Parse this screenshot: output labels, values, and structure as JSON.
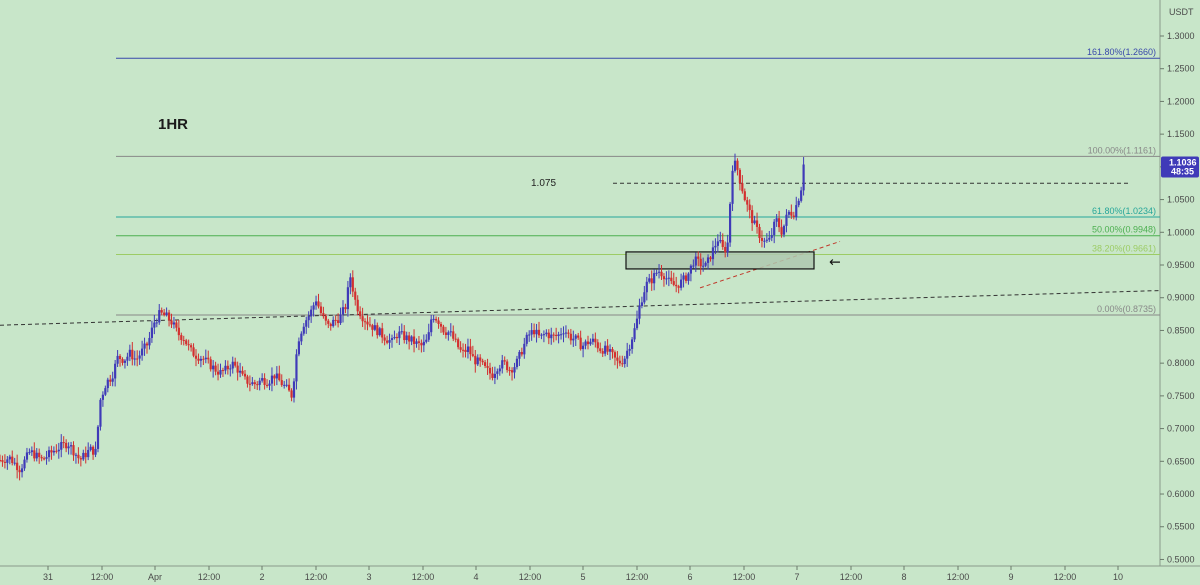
{
  "chart_data": {
    "type": "candlestick",
    "currency": "USDT",
    "timeframe_label": "1HR",
    "level_label": "1.075",
    "level_value": 1.075,
    "ylim": [
      0.49,
      1.355
    ],
    "xlim": [
      0,
      1160
    ],
    "y_ticks": [
      "1.3000",
      "1.2500",
      "1.2000",
      "1.1500",
      "1.1000",
      "1.0500",
      "1.0000",
      "0.9500",
      "0.9000",
      "0.8500",
      "0.8000",
      "0.7500",
      "0.7000",
      "0.6500",
      "0.6000",
      "0.5500",
      "0.5000"
    ],
    "x_ticks": [
      {
        "label": "31",
        "x": 48
      },
      {
        "label": "12:00",
        "x": 102
      },
      {
        "label": "Apr",
        "x": 155
      },
      {
        "label": "12:00",
        "x": 209
      },
      {
        "label": "2",
        "x": 262
      },
      {
        "label": "12:00",
        "x": 316
      },
      {
        "label": "3",
        "x": 369
      },
      {
        "label": "12:00",
        "x": 423
      },
      {
        "label": "4",
        "x": 476
      },
      {
        "label": "12:00",
        "x": 530
      },
      {
        "label": "5",
        "x": 583
      },
      {
        "label": "12:00",
        "x": 637
      },
      {
        "label": "6",
        "x": 690
      },
      {
        "label": "12:00",
        "x": 744
      },
      {
        "label": "7",
        "x": 797
      },
      {
        "label": "12:00",
        "x": 851
      },
      {
        "label": "8",
        "x": 904
      },
      {
        "label": "12:00",
        "x": 958
      },
      {
        "label": "9",
        "x": 1011
      },
      {
        "label": "12:00",
        "x": 1065
      },
      {
        "label": "10",
        "x": 1118
      }
    ],
    "fib_levels": [
      {
        "label": "161.80%(1.2660)",
        "value": 1.266,
        "color": "#3949ab"
      },
      {
        "label": "100.00%(1.1161)",
        "value": 1.1161,
        "color": "#888888"
      },
      {
        "label": "61.80%(1.0234)",
        "value": 1.0234,
        "color": "#26a69a"
      },
      {
        "label": "50.00%(0.9948)",
        "value": 0.9948,
        "color": "#4caf50"
      },
      {
        "label": "38.20%(0.9661)",
        "value": 0.9661,
        "color": "#9ccc65"
      },
      {
        "label": "0.00%(0.8735)",
        "value": 0.8735,
        "color": "#888888"
      }
    ],
    "current_price": {
      "value": 1.1036,
      "label": "1.1036",
      "countdown": "48:35"
    },
    "zone": {
      "x0": 626,
      "x1": 814,
      "y_low": 0.944,
      "y_high": 0.97
    },
    "trendlines": [
      {
        "x0": 0,
        "y0": 0.858,
        "x1": 1160,
        "y1": 0.911,
        "color": "#333333"
      },
      {
        "x0": 700,
        "y0": 0.915,
        "x1": 840,
        "y1": 0.986,
        "color": "#c0392b"
      }
    ],
    "level_line": {
      "x0": 613,
      "x1": 1128
    },
    "arrow": {
      "x": 833,
      "value": 0.955
    },
    "colors": {
      "up": "#3f3ab8",
      "down": "#d32f2f",
      "background": "#c8e6c9",
      "price_tag": "#3f3ab8"
    },
    "ohlc_points": [
      [
        0,
        0.652
      ],
      [
        10,
        0.655
      ],
      [
        20,
        0.638
      ],
      [
        30,
        0.665
      ],
      [
        42,
        0.652
      ],
      [
        55,
        0.668
      ],
      [
        68,
        0.678
      ],
      [
        80,
        0.652
      ],
      [
        90,
        0.668
      ],
      [
        96,
        0.664
      ],
      [
        100,
        0.742
      ],
      [
        106,
        0.77
      ],
      [
        112,
        0.78
      ],
      [
        118,
        0.81
      ],
      [
        124,
        0.805
      ],
      [
        130,
        0.815
      ],
      [
        136,
        0.805
      ],
      [
        142,
        0.818
      ],
      [
        148,
        0.83
      ],
      [
        154,
        0.862
      ],
      [
        160,
        0.876
      ],
      [
        166,
        0.872
      ],
      [
        172,
        0.862
      ],
      [
        178,
        0.845
      ],
      [
        184,
        0.838
      ],
      [
        190,
        0.82
      ],
      [
        196,
        0.812
      ],
      [
        202,
        0.808
      ],
      [
        208,
        0.8
      ],
      [
        214,
        0.792
      ],
      [
        220,
        0.785
      ],
      [
        226,
        0.79
      ],
      [
        232,
        0.8
      ],
      [
        238,
        0.79
      ],
      [
        244,
        0.775
      ],
      [
        250,
        0.77
      ],
      [
        256,
        0.768
      ],
      [
        262,
        0.775
      ],
      [
        268,
        0.772
      ],
      [
        274,
        0.782
      ],
      [
        280,
        0.772
      ],
      [
        286,
        0.762
      ],
      [
        292,
        0.75
      ],
      [
        298,
        0.835
      ],
      [
        304,
        0.862
      ],
      [
        310,
        0.875
      ],
      [
        316,
        0.898
      ],
      [
        322,
        0.872
      ],
      [
        328,
        0.856
      ],
      [
        334,
        0.864
      ],
      [
        340,
        0.87
      ],
      [
        346,
        0.888
      ],
      [
        350,
        0.935
      ],
      [
        356,
        0.89
      ],
      [
        362,
        0.872
      ],
      [
        368,
        0.862
      ],
      [
        374,
        0.854
      ],
      [
        380,
        0.846
      ],
      [
        386,
        0.838
      ],
      [
        392,
        0.832
      ],
      [
        398,
        0.846
      ],
      [
        404,
        0.84
      ],
      [
        410,
        0.836
      ],
      [
        416,
        0.83
      ],
      [
        422,
        0.826
      ],
      [
        428,
        0.836
      ],
      [
        432,
        0.875
      ],
      [
        438,
        0.866
      ],
      [
        444,
        0.85
      ],
      [
        450,
        0.846
      ],
      [
        456,
        0.83
      ],
      [
        462,
        0.815
      ],
      [
        468,
        0.822
      ],
      [
        474,
        0.805
      ],
      [
        480,
        0.8
      ],
      [
        486,
        0.79
      ],
      [
        492,
        0.782
      ],
      [
        498,
        0.796
      ],
      [
        504,
        0.8
      ],
      [
        510,
        0.79
      ],
      [
        516,
        0.798
      ],
      [
        522,
        0.82
      ],
      [
        528,
        0.842
      ],
      [
        534,
        0.85
      ],
      [
        540,
        0.838
      ],
      [
        546,
        0.846
      ],
      [
        552,
        0.84
      ],
      [
        558,
        0.842
      ],
      [
        564,
        0.852
      ],
      [
        570,
        0.84
      ],
      [
        576,
        0.836
      ],
      [
        582,
        0.826
      ],
      [
        588,
        0.832
      ],
      [
        594,
        0.834
      ],
      [
        600,
        0.822
      ],
      [
        606,
        0.82
      ],
      [
        612,
        0.812
      ],
      [
        618,
        0.8
      ],
      [
        624,
        0.806
      ],
      [
        630,
        0.83
      ],
      [
        636,
        0.858
      ],
      [
        640,
        0.89
      ],
      [
        646,
        0.92
      ],
      [
        652,
        0.928
      ],
      [
        658,
        0.942
      ],
      [
        664,
        0.935
      ],
      [
        670,
        0.922
      ],
      [
        676,
        0.918
      ],
      [
        682,
        0.925
      ],
      [
        688,
        0.935
      ],
      [
        694,
        0.958
      ],
      [
        700,
        0.952
      ],
      [
        706,
        0.948
      ],
      [
        712,
        0.97
      ],
      [
        718,
        0.99
      ],
      [
        724,
        0.97
      ],
      [
        728,
        0.985
      ],
      [
        732,
        1.1
      ],
      [
        736,
        1.105
      ],
      [
        740,
        1.08
      ],
      [
        746,
        1.045
      ],
      [
        752,
        1.02
      ],
      [
        758,
        1.0
      ],
      [
        764,
        0.985
      ],
      [
        770,
        0.988
      ],
      [
        776,
        1.02
      ],
      [
        782,
        1.0
      ],
      [
        788,
        1.03
      ],
      [
        794,
        1.03
      ],
      [
        800,
        1.06
      ],
      [
        806,
        1.1036
      ]
    ]
  }
}
